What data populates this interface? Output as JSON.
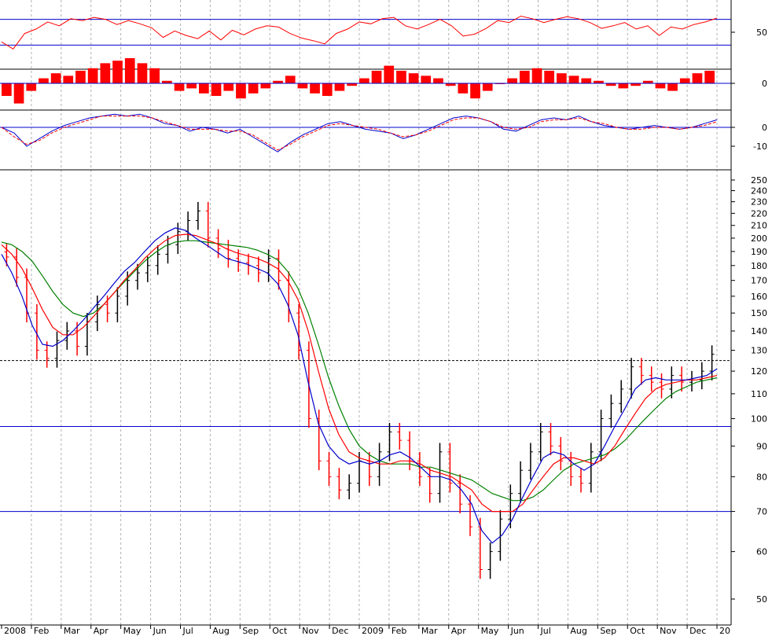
{
  "chart_data": [
    {
      "type": "line",
      "panel": "rsi",
      "ylim": [
        0,
        100
      ],
      "yticks": [
        50
      ],
      "reference_lines": [
        30,
        70
      ],
      "series": [
        {
          "color": "#ff0000",
          "values": [
            35,
            24,
            48,
            55,
            66,
            60,
            71,
            68,
            73,
            70,
            62,
            68,
            63,
            57,
            42,
            52,
            45,
            40,
            52,
            38,
            53,
            46,
            55,
            60,
            58,
            48,
            41,
            37,
            32,
            48,
            55,
            66,
            63,
            71,
            73,
            60,
            55,
            62,
            70,
            60,
            44,
            47,
            56,
            68,
            65,
            75,
            71,
            65,
            70,
            74,
            71,
            65,
            56,
            60,
            65,
            55,
            60,
            45,
            58,
            55,
            62,
            66,
            72
          ]
        }
      ]
    },
    {
      "type": "bar",
      "panel": "momentum-histogram",
      "yticks": [
        0
      ],
      "reference_lines": [
        0
      ],
      "series": [
        {
          "color": "#ff0000",
          "values": [
            -5,
            -8,
            -3,
            2,
            4,
            3,
            5,
            6,
            8,
            9,
            10,
            8,
            6,
            1,
            -3,
            -2,
            -4,
            -5,
            -3,
            -6,
            -4,
            -2,
            1,
            3,
            -2,
            -4,
            -5,
            -3,
            -1,
            2,
            5,
            7,
            5,
            4,
            3,
            2,
            -1,
            -4,
            -6,
            -3,
            0,
            2,
            5,
            6,
            5,
            4,
            3,
            2,
            1,
            -1,
            -2,
            -1,
            1,
            -2,
            -3,
            2,
            4,
            5
          ]
        }
      ]
    },
    {
      "type": "line",
      "panel": "macd",
      "yticks": [
        0,
        -10
      ],
      "reference_lines": [
        0
      ],
      "series": [
        {
          "color": "#0000cc",
          "values": [
            0,
            -3,
            -10,
            -6,
            -2,
            1,
            3,
            5,
            6,
            7,
            6,
            7,
            5,
            2,
            1,
            -2,
            0,
            -1,
            -3,
            -1,
            -5,
            -9,
            -13,
            -8,
            -4,
            -1,
            2,
            3,
            1,
            -1,
            -2,
            -3,
            -6,
            -4,
            -1,
            2,
            5,
            6,
            5,
            3,
            -1,
            -2,
            1,
            4,
            5,
            4,
            6,
            3,
            1,
            0,
            -1,
            0,
            1,
            0,
            -1,
            0,
            2,
            4
          ]
        },
        {
          "color": "#ff0000",
          "dashed": true,
          "values": [
            0,
            -5,
            -9,
            -7,
            -3,
            0,
            2,
            4,
            6,
            6,
            6,
            6,
            5,
            3,
            1,
            -1,
            -1,
            -1,
            -2,
            -2,
            -4,
            -8,
            -12,
            -9,
            -5,
            -2,
            1,
            2,
            1,
            0,
            -1,
            -3,
            -5,
            -4,
            -2,
            1,
            4,
            5,
            5,
            3,
            0,
            -1,
            0,
            3,
            4,
            4,
            5,
            3,
            2,
            0,
            -1,
            -1,
            0,
            0,
            -1,
            0,
            1,
            3
          ]
        }
      ]
    },
    {
      "type": "candlestick",
      "panel": "price",
      "yscale": "log",
      "ylim": [
        45,
        260
      ],
      "yticks": [
        50,
        60,
        70,
        80,
        90,
        100,
        110,
        120,
        130,
        140,
        150,
        160,
        170,
        180,
        190,
        200,
        210,
        220,
        230,
        240,
        250
      ],
      "horizontal_lines": [
        {
          "value": 70,
          "style": "solid"
        },
        {
          "value": 97,
          "style": "solid"
        },
        {
          "value": 125,
          "style": "dashed"
        }
      ],
      "x_labels": [
        "2008",
        "Feb",
        "Mar",
        "Apr",
        "May",
        "Jun",
        "Jul",
        "Aug",
        "Sep",
        "Oct",
        "Nov",
        "Dec",
        "2009",
        "Feb",
        "Mar",
        "Apr",
        "May",
        "Jun",
        "Jul",
        "Aug",
        "Sep",
        "Oct",
        "Nov",
        "Dec",
        "20"
      ],
      "close": [
        186,
        172,
        150,
        130,
        126,
        135,
        140,
        132,
        145,
        155,
        150,
        160,
        170,
        175,
        180,
        188,
        195,
        205,
        214,
        222,
        200,
        192,
        185,
        182,
        180,
        175,
        185,
        170,
        150,
        130,
        100,
        85,
        80,
        76,
        78,
        85,
        80,
        88,
        95,
        92,
        85,
        80,
        75,
        88,
        78,
        72,
        66,
        56,
        60,
        68,
        75,
        82,
        88,
        95,
        90,
        85,
        80,
        78,
        88,
        100,
        106,
        112,
        122,
        118,
        115,
        112,
        118,
        115,
        116,
        120,
        128
      ],
      "ma_short": {
        "color": "#0000cc",
        "values": [
          188,
          175,
          160,
          143,
          133,
          132,
          135,
          140,
          146,
          153,
          160,
          168,
          176,
          182,
          190,
          198,
          204,
          208,
          206,
          200,
          195,
          190,
          185,
          183,
          181,
          178,
          175,
          168,
          155,
          138,
          115,
          98,
          90,
          86,
          84,
          85,
          84,
          85,
          87,
          88,
          86,
          83,
          80,
          80,
          79,
          76,
          72,
          65,
          62,
          64,
          68,
          74,
          80,
          86,
          88,
          87,
          84,
          82,
          84,
          90,
          97,
          104,
          112,
          116,
          117,
          116,
          116,
          116,
          117,
          118,
          121
        ]
      },
      "ma_mid": {
        "color": "#ff0000",
        "values": [
          195,
          188,
          178,
          165,
          152,
          142,
          138,
          138,
          142,
          148,
          155,
          162,
          170,
          177,
          185,
          192,
          198,
          202,
          203,
          202,
          199,
          196,
          192,
          189,
          187,
          185,
          182,
          178,
          170,
          158,
          140,
          120,
          104,
          94,
          88,
          86,
          85,
          84,
          84,
          85,
          85,
          84,
          82,
          81,
          80,
          78,
          76,
          72,
          70,
          70,
          70,
          72,
          76,
          80,
          84,
          86,
          86,
          85,
          84,
          86,
          90,
          96,
          102,
          108,
          112,
          114,
          115,
          116,
          116,
          117,
          118
        ]
      },
      "ma_long": {
        "color": "#008000",
        "values": [
          197,
          195,
          190,
          183,
          173,
          163,
          155,
          150,
          148,
          150,
          155,
          162,
          169,
          176,
          183,
          189,
          194,
          197,
          198,
          198,
          197,
          196,
          195,
          194,
          193,
          191,
          188,
          184,
          176,
          165,
          150,
          133,
          117,
          105,
          96,
          90,
          87,
          85,
          84,
          84,
          84,
          83,
          83,
          82,
          81,
          80,
          79,
          77,
          75,
          74,
          73,
          73,
          74,
          76,
          79,
          82,
          84,
          85,
          86,
          87,
          89,
          92,
          96,
          100,
          104,
          108,
          111,
          113,
          115,
          116,
          117
        ]
      }
    }
  ]
}
